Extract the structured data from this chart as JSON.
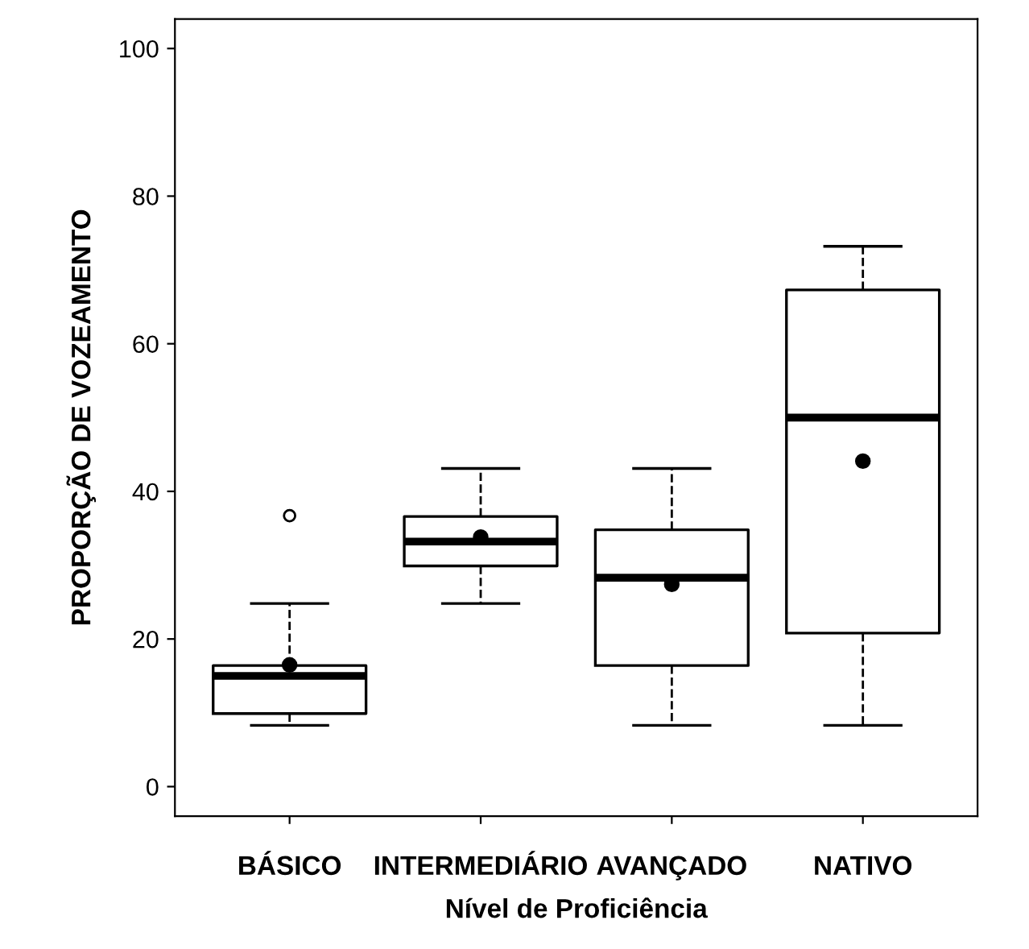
{
  "chart_data": {
    "type": "box",
    "xlabel": "Nível de Proficiência",
    "ylabel": "PROPORÇÃO DE VOZEAMENTO",
    "categories": [
      "BÁSICO",
      "INTERMEDIÁRIO",
      "AVANÇADO",
      "NATIVO"
    ],
    "boxes": [
      {
        "low": 8.3,
        "q1": 9.9,
        "median": 15.0,
        "q3": 16.4,
        "high": 24.8,
        "mean": 16.5,
        "outliers": [
          36.7
        ]
      },
      {
        "low": 24.8,
        "q1": 29.9,
        "median": 33.2,
        "q3": 36.6,
        "high": 43.1,
        "mean": 33.8
      },
      {
        "low": 8.3,
        "q1": 16.4,
        "median": 28.3,
        "q3": 34.8,
        "high": 43.1,
        "mean": 27.4
      },
      {
        "low": 8.3,
        "q1": 20.8,
        "median": 50.0,
        "q3": 67.3,
        "high": 73.2,
        "mean": 44.1
      }
    ],
    "ylim": [
      -4,
      104
    ],
    "yticks": [
      0,
      20,
      40,
      60,
      80,
      100
    ],
    "grid": false,
    "legend": false
  }
}
